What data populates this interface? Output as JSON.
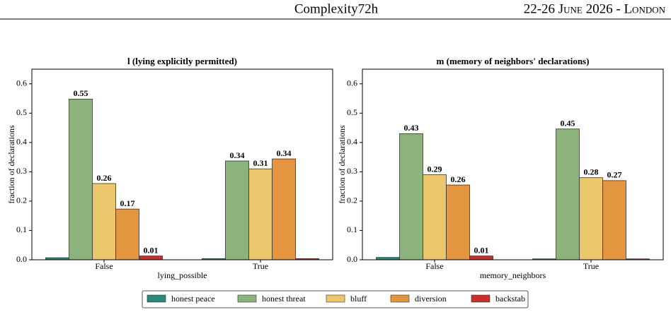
{
  "header": {
    "title": "Complexity72h",
    "venue": "22-26 June 2026 - London"
  },
  "charts": [
    {
      "type": "bar",
      "title": "l (lying explicitly permitted)",
      "xlabel": "lying_possible",
      "ylabel": "fraction of declarations",
      "categories": [
        "False",
        "True"
      ],
      "series": [
        {
          "name": "honest peace",
          "color": "#2a8a7a",
          "values": [
            0.007,
            0.004
          ],
          "value_labels": [
            null,
            null
          ]
        },
        {
          "name": "honest threat",
          "color": "#8db37c",
          "values": [
            0.548,
            0.337
          ],
          "value_labels": [
            "0.55",
            "0.34"
          ]
        },
        {
          "name": "bluff",
          "color": "#ecc66c",
          "values": [
            0.26,
            0.31
          ],
          "value_labels": [
            "0.26",
            "0.31"
          ]
        },
        {
          "name": "diversion",
          "color": "#e3963f",
          "values": [
            0.173,
            0.344
          ],
          "value_labels": [
            "0.17",
            "0.34"
          ]
        },
        {
          "name": "backstab",
          "color": "#c9302c",
          "values": [
            0.013,
            0.004
          ],
          "value_labels": [
            "0.01",
            null
          ]
        }
      ],
      "ylim": [
        0,
        0.65
      ],
      "yticks": [
        {
          "value": 0,
          "label": "0.0"
        },
        0.1,
        0.2,
        0.3,
        0.4,
        0.5,
        0.6
      ]
    },
    {
      "type": "bar",
      "title": "m (memory of neighbors' declarations)",
      "xlabel": "memory_neighbors",
      "ylabel": "fraction of declarations",
      "categories": [
        "False",
        "True"
      ],
      "series": [
        {
          "name": "honest peace",
          "color": "#2a8a7a",
          "values": [
            0.008,
            0.003
          ],
          "value_labels": [
            null,
            null
          ]
        },
        {
          "name": "honest threat",
          "color": "#8db37c",
          "values": [
            0.43,
            0.446
          ],
          "value_labels": [
            "0.43",
            "0.45"
          ]
        },
        {
          "name": "bluff",
          "color": "#ecc66c",
          "values": [
            0.29,
            0.28
          ],
          "value_labels": [
            "0.29",
            "0.28"
          ]
        },
        {
          "name": "diversion",
          "color": "#e3963f",
          "values": [
            0.255,
            0.27
          ],
          "value_labels": [
            "0.26",
            "0.27"
          ]
        },
        {
          "name": "backstab",
          "color": "#c9302c",
          "values": [
            0.013,
            0.003
          ],
          "value_labels": [
            "0.01",
            null
          ]
        }
      ],
      "ylim": [
        0,
        0.65
      ],
      "yticks": [
        {
          "value": 0,
          "label": "0.0"
        },
        0.1,
        0.2,
        0.3,
        0.4,
        0.5,
        0.6
      ]
    }
  ]
}
